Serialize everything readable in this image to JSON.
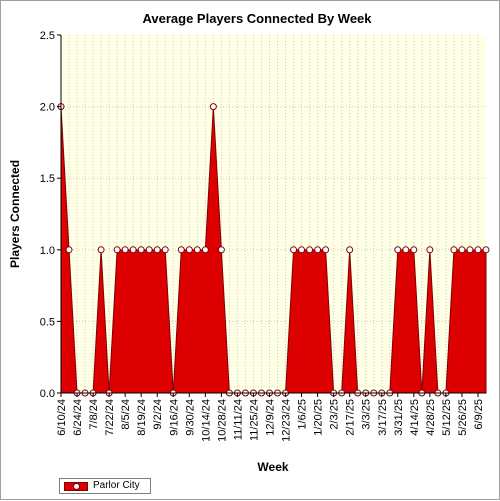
{
  "chart_data": {
    "type": "area",
    "title": "Average Players Connected By Week",
    "xlabel": "Week",
    "ylabel": "Players Connected",
    "ylim": [
      0,
      2.5
    ],
    "yticks": [
      "0.0",
      "0.5",
      "1.0",
      "1.5",
      "2.0",
      "2.5"
    ],
    "grid": true,
    "legend_position": "bottom-left",
    "categories": [
      "6/10/24",
      "6/17/24",
      "6/24/24",
      "7/1/24",
      "7/8/24",
      "7/15/24",
      "7/22/24",
      "7/29/24",
      "8/5/24",
      "8/12/24",
      "8/19/24",
      "8/26/24",
      "9/2/24",
      "9/9/24",
      "9/16/24",
      "9/23/24",
      "9/30/24",
      "10/7/24",
      "10/14/24",
      "10/21/24",
      "10/28/24",
      "11/4/24",
      "11/11/24",
      "11/18/24",
      "11/25/24",
      "12/2/24",
      "12/9/24",
      "12/16/24",
      "12/23/24",
      "12/30/24",
      "1/6/25",
      "1/13/25",
      "1/20/25",
      "1/27/25",
      "2/3/25",
      "2/10/25",
      "2/17/25",
      "2/24/25",
      "3/3/25",
      "3/10/25",
      "3/17/25",
      "3/24/25",
      "3/31/25",
      "4/7/25",
      "4/14/25",
      "4/21/25",
      "4/28/25",
      "5/5/25",
      "5/12/25",
      "5/19/25",
      "5/26/25",
      "6/2/25",
      "6/9/25",
      "6/16/25"
    ],
    "xtick_labels": [
      "6/10/24",
      "6/24/24",
      "7/8/24",
      "7/22/24",
      "8/5/24",
      "8/19/24",
      "9/2/24",
      "9/16/24",
      "9/30/24",
      "10/14/24",
      "10/28/24",
      "11/11/24",
      "11/25/24",
      "12/9/24",
      "12/23/24",
      "1/6/25",
      "1/20/25",
      "2/3/25",
      "2/17/25",
      "3/3/25",
      "3/17/25",
      "3/31/25",
      "4/14/25",
      "4/28/25",
      "5/12/25",
      "5/26/25",
      "6/9/25"
    ],
    "series": [
      {
        "name": "Parlor City",
        "color": "#dd0000",
        "values": [
          2,
          1,
          0,
          0,
          0,
          1,
          0,
          1,
          1,
          1,
          1,
          1,
          1,
          1,
          0,
          1,
          1,
          1,
          1,
          2,
          1,
          0,
          0,
          0,
          0,
          0,
          0,
          0,
          0,
          1,
          1,
          1,
          1,
          1,
          0,
          0,
          1,
          0,
          0,
          0,
          0,
          0,
          1,
          1,
          1,
          0,
          1,
          0,
          0,
          1,
          1,
          1,
          1,
          1
        ]
      }
    ]
  }
}
